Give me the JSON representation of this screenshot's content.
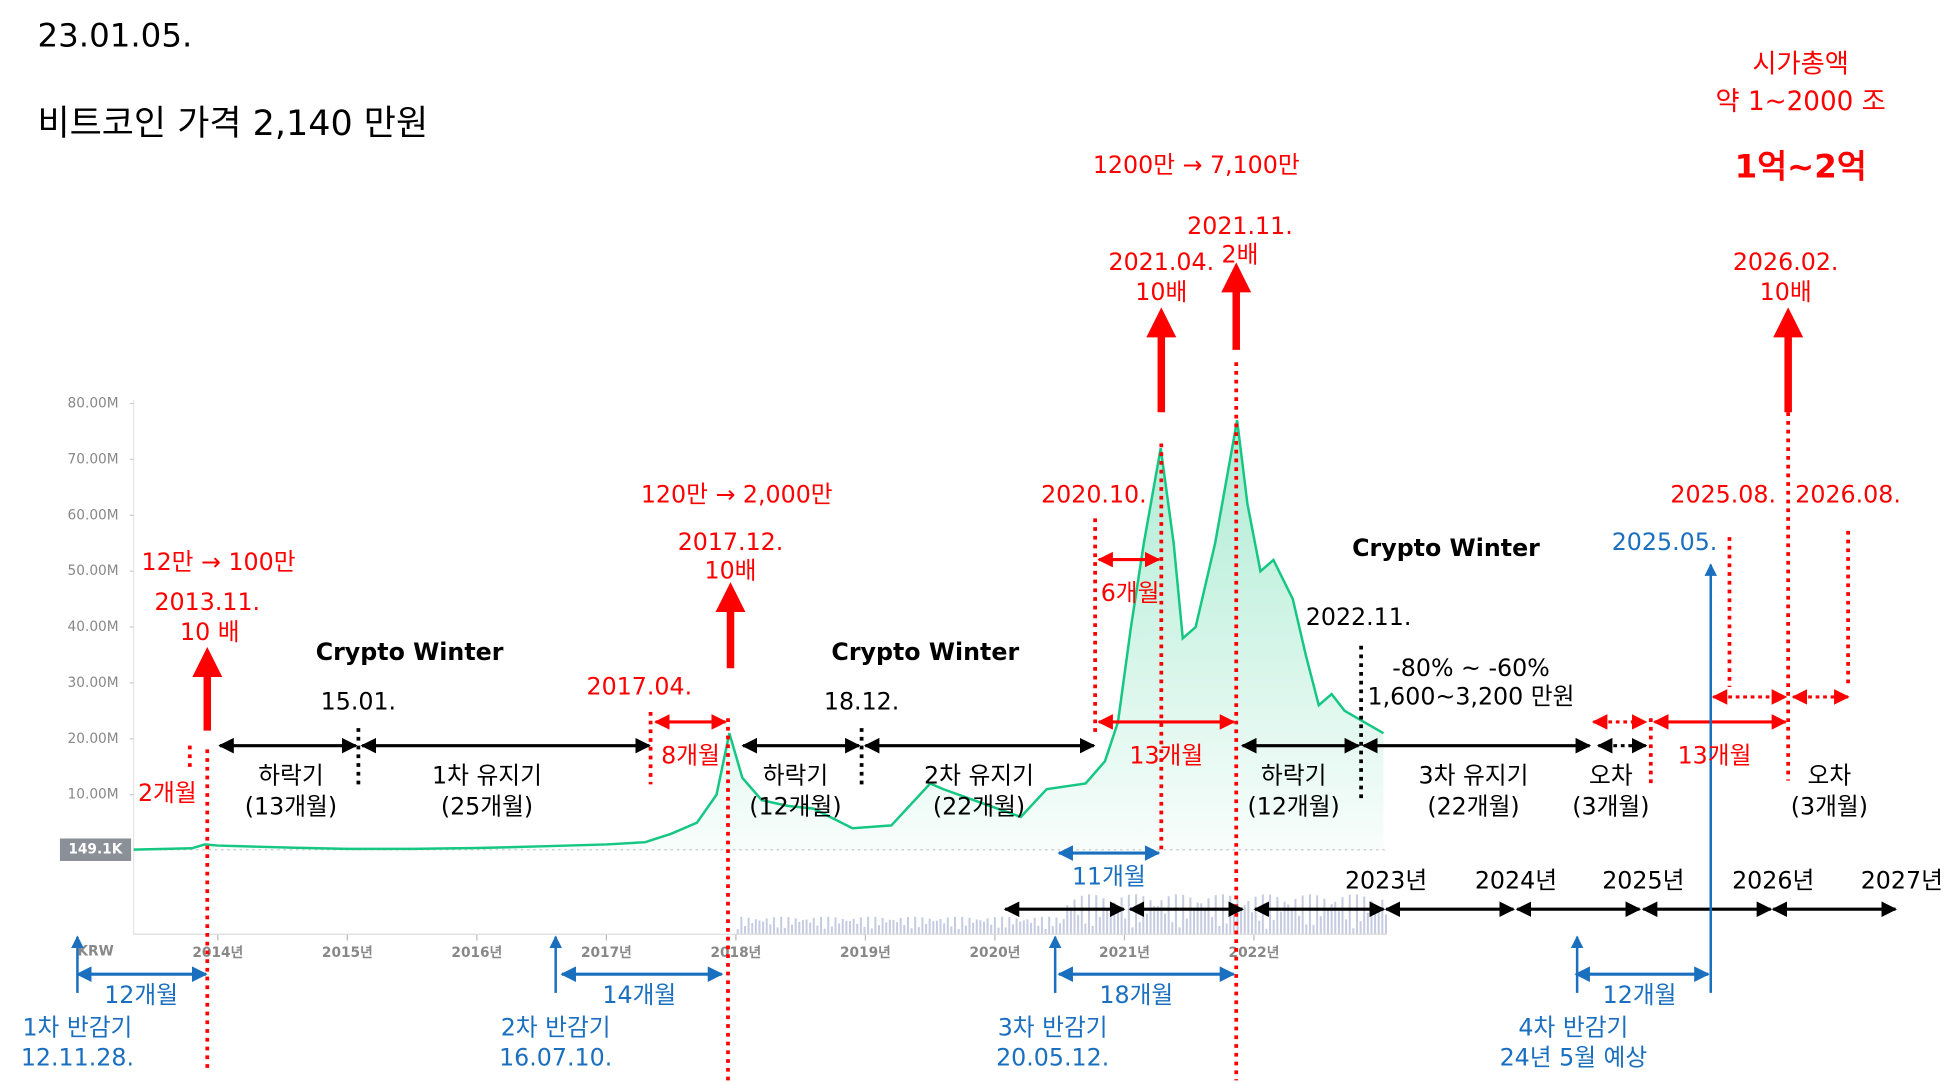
{
  "chart_data": {
    "type": "line",
    "title": "23.01.05.",
    "subtitle": "비트코인 가격 2,140 만원",
    "ylabel": "KRW",
    "color": "#16c784",
    "x": [
      2013.35,
      2013.8,
      2013.9,
      2014.0,
      2014.3,
      2014.6,
      2015.0,
      2015.5,
      2016.0,
      2016.5,
      2017.0,
      2017.3,
      2017.5,
      2017.7,
      2017.85,
      2017.95,
      2018.05,
      2018.2,
      2018.4,
      2018.6,
      2018.9,
      2019.2,
      2019.5,
      2019.6,
      2019.9,
      2020.2,
      2020.4,
      2020.7,
      2020.85,
      2020.95,
      2021.05,
      2021.15,
      2021.28,
      2021.38,
      2021.45,
      2021.55,
      2021.7,
      2021.8,
      2021.87,
      2021.95,
      2022.05,
      2022.15,
      2022.3,
      2022.4,
      2022.5,
      2022.6,
      2022.7,
      2022.85,
      2023.0
    ],
    "values": [
      149100,
      400000,
      1100000,
      900000,
      700000,
      500000,
      300000,
      280000,
      450000,
      750000,
      1100000,
      1500000,
      3000000,
      5000000,
      10000000,
      21000000,
      13000000,
      9000000,
      8000000,
      7500000,
      4000000,
      4500000,
      12000000,
      11000000,
      8500000,
      6000000,
      11000000,
      12000000,
      16000000,
      23000000,
      40000000,
      55000000,
      72000000,
      55000000,
      38000000,
      40000000,
      55000000,
      68000000,
      77000000,
      62000000,
      50000000,
      52000000,
      45000000,
      35000000,
      26000000,
      28000000,
      25000000,
      23000000,
      21000000
    ],
    "xlim": [
      2013.35,
      2023.02
    ],
    "ylim": [
      0,
      80000000
    ],
    "xticks": [
      {
        "value": 2014,
        "label": "2014년"
      },
      {
        "value": 2015,
        "label": "2015년"
      },
      {
        "value": 2016,
        "label": "2016년"
      },
      {
        "value": 2017,
        "label": "2017년"
      },
      {
        "value": 2018,
        "label": "2018년"
      },
      {
        "value": 2019,
        "label": "2019년"
      },
      {
        "value": 2020,
        "label": "2020년"
      },
      {
        "value": 2021,
        "label": "2021년"
      },
      {
        "value": 2022,
        "label": "2022년"
      }
    ],
    "yticks": [
      {
        "value": 149100,
        "label": "149.1K"
      },
      {
        "value": 10000000,
        "label": "10.00M"
      },
      {
        "value": 20000000,
        "label": "20.00M"
      },
      {
        "value": 30000000,
        "label": "30.00M"
      },
      {
        "value": 40000000,
        "label": "40.00M"
      },
      {
        "value": 50000000,
        "label": "50.00M"
      },
      {
        "value": 60000000,
        "label": "60.00M"
      },
      {
        "value": 70000000,
        "label": "70.00M"
      },
      {
        "value": 80000000,
        "label": "80.00M"
      }
    ],
    "annotations": [
      {
        "text": "시가총액",
        "color": "#ff0000"
      },
      {
        "text": "약 1~2000 조",
        "color": "#ff0000"
      },
      {
        "text": "1억~2억",
        "color": "#ff0000"
      },
      {
        "text": "1200만 → 7,100만",
        "color": "#ff0000"
      },
      {
        "text": "2021.11.",
        "color": "#ff0000"
      },
      {
        "text": "2배",
        "color": "#ff0000"
      },
      {
        "text": "2021.04.",
        "color": "#ff0000"
      },
      {
        "text": "10배",
        "color": "#ff0000"
      },
      {
        "text": "2026.02.",
        "color": "#ff0000"
      },
      {
        "text": "10배",
        "color": "#ff0000"
      },
      {
        "text": "120만 → 2,000만",
        "color": "#ff0000"
      },
      {
        "text": "2020.10.",
        "color": "#ff0000"
      },
      {
        "text": "2025.08.",
        "color": "#ff0000"
      },
      {
        "text": "2026.08.",
        "color": "#ff0000"
      },
      {
        "text": "2017.12.",
        "color": "#ff0000"
      },
      {
        "text": "10배",
        "color": "#ff0000"
      },
      {
        "text": "12만 → 100만",
        "color": "#ff0000"
      },
      {
        "text": "2013.11.",
        "color": "#ff0000"
      },
      {
        "text": "10 배",
        "color": "#ff0000"
      },
      {
        "text": "2025.05.",
        "color": "#1a6fbf"
      },
      {
        "text": "Crypto Winter",
        "color": "#000000"
      },
      {
        "text": "Crypto Winter",
        "color": "#000000"
      },
      {
        "text": "Crypto Winter",
        "color": "#000000"
      },
      {
        "text": "2022.11.",
        "color": "#000000"
      },
      {
        "text": "-80% ~ -60%",
        "color": "#000000"
      },
      {
        "text": "1,600~3,200 만원",
        "color": "#000000"
      },
      {
        "text": "15.01.",
        "color": "#000000"
      },
      {
        "text": "18.12.",
        "color": "#000000"
      },
      {
        "text": "2017.04.",
        "color": "#ff0000"
      },
      {
        "text": "2개월",
        "color": "#ff0000"
      },
      {
        "text": "8개월",
        "color": "#ff0000"
      },
      {
        "text": "6개월",
        "color": "#ff0000"
      },
      {
        "text": "13개월",
        "color": "#ff0000"
      },
      {
        "text": "13개월",
        "color": "#ff0000"
      },
      {
        "text": "하락기",
        "color": "#000000"
      },
      {
        "text": "(13개월)",
        "color": "#000000"
      },
      {
        "text": "1차 유지기",
        "color": "#000000"
      },
      {
        "text": "(25개월)",
        "color": "#000000"
      },
      {
        "text": "하락기",
        "color": "#000000"
      },
      {
        "text": "(12개월)",
        "color": "#000000"
      },
      {
        "text": "2차 유지기",
        "color": "#000000"
      },
      {
        "text": "(22개월)",
        "color": "#000000"
      },
      {
        "text": "하락기",
        "color": "#000000"
      },
      {
        "text": "(12개월)",
        "color": "#000000"
      },
      {
        "text": "3차 유지기",
        "color": "#000000"
      },
      {
        "text": "(22개월)",
        "color": "#000000"
      },
      {
        "text": "오차",
        "color": "#000000"
      },
      {
        "text": "(3개월)",
        "color": "#000000"
      },
      {
        "text": "오차",
        "color": "#000000"
      },
      {
        "text": "(3개월)",
        "color": "#000000"
      },
      {
        "text": "11개월",
        "color": "#1a6fbf"
      },
      {
        "text": "2023년",
        "color": "#000000"
      },
      {
        "text": "2024년",
        "color": "#000000"
      },
      {
        "text": "2025년",
        "color": "#000000"
      },
      {
        "text": "2026년",
        "color": "#000000"
      },
      {
        "text": "2027년",
        "color": "#000000"
      },
      {
        "text": "12개월",
        "color": "#1a6fbf"
      },
      {
        "text": "14개월",
        "color": "#1a6fbf"
      },
      {
        "text": "18개월",
        "color": "#1a6fbf"
      },
      {
        "text": "12개월",
        "color": "#1a6fbf"
      },
      {
        "text": "1차 반감기",
        "color": "#1a6fbf"
      },
      {
        "text": "12.11.28.",
        "color": "#1a6fbf"
      },
      {
        "text": "2차 반감기",
        "color": "#1a6fbf"
      },
      {
        "text": "16.07.10.",
        "color": "#1a6fbf"
      },
      {
        "text": "3차 반감기",
        "color": "#1a6fbf"
      },
      {
        "text": "20.05.12.",
        "color": "#1a6fbf"
      },
      {
        "text": "4차 반감기",
        "color": "#1a6fbf"
      },
      {
        "text": "24년 5월 예상",
        "color": "#1a6fbf"
      }
    ]
  }
}
